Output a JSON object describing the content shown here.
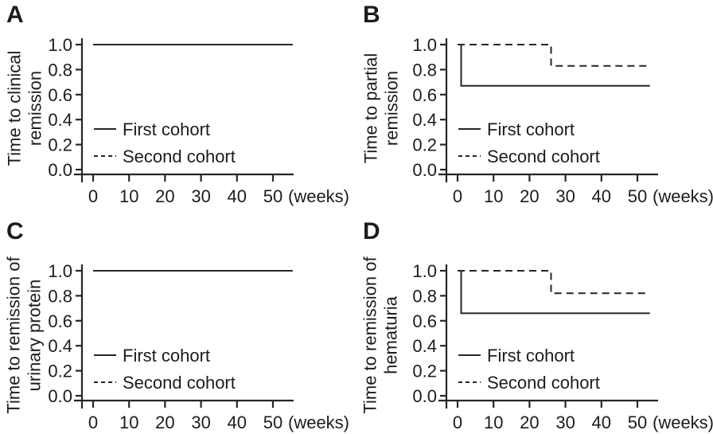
{
  "figure": {
    "background": "#ffffff",
    "line_color": "#262626",
    "text_color": "#1c1c1c"
  },
  "chart_data": [
    {
      "panel": "A",
      "type": "line",
      "step": true,
      "grid": false,
      "ylabel_lines": [
        "Time to clinical",
        "remission"
      ],
      "x_unit_label": "(weeks)",
      "x_ticks": [
        0,
        10,
        20,
        30,
        40,
        50
      ],
      "y_ticks": [
        "0.0",
        "0.2",
        "0.4",
        "0.6",
        "0.8",
        "1.0"
      ],
      "xlim": [
        0,
        55.5
      ],
      "ylim": [
        0,
        1
      ],
      "legend_position": "inside-left-middle",
      "series": [
        {
          "name": "First cohort",
          "style": "solid",
          "points": [
            [
              0,
              1.0
            ],
            [
              55.5,
              1.0
            ]
          ]
        },
        {
          "name": "Second cohort",
          "style": "dashed",
          "points": [
            [
              0,
              1.0
            ],
            [
              55.5,
              1.0
            ]
          ]
        }
      ]
    },
    {
      "panel": "B",
      "type": "line",
      "step": true,
      "grid": false,
      "ylabel_lines": [
        "Time to partial",
        "remission"
      ],
      "x_unit_label": "(weeks)",
      "x_ticks": [
        0,
        10,
        20,
        30,
        40,
        50
      ],
      "y_ticks": [
        "0.0",
        "0.2",
        "0.4",
        "0.6",
        "0.8",
        "1.0"
      ],
      "xlim": [
        0,
        55.5
      ],
      "ylim": [
        0,
        1
      ],
      "legend_position": "inside-left-middle",
      "series": [
        {
          "name": "First cohort",
          "style": "solid",
          "points": [
            [
              0,
              1.0
            ],
            [
              1,
              1.0
            ],
            [
              1,
              0.67
            ],
            [
              53.5,
              0.67
            ]
          ]
        },
        {
          "name": "Second cohort",
          "style": "dashed",
          "points": [
            [
              0,
              1.0
            ],
            [
              26,
              1.0
            ],
            [
              26,
              0.83
            ],
            [
              53.5,
              0.83
            ]
          ]
        }
      ]
    },
    {
      "panel": "C",
      "type": "line",
      "step": true,
      "grid": false,
      "ylabel_lines": [
        "Time to remission of",
        "urinary protein"
      ],
      "x_unit_label": "(weeks)",
      "x_ticks": [
        0,
        10,
        20,
        30,
        40,
        50
      ],
      "y_ticks": [
        "0.0",
        "0.2",
        "0.4",
        "0.6",
        "0.8",
        "1.0"
      ],
      "xlim": [
        0,
        55.5
      ],
      "ylim": [
        0,
        1
      ],
      "legend_position": "inside-left-middle",
      "series": [
        {
          "name": "First cohort",
          "style": "solid",
          "points": [
            [
              0,
              1.0
            ],
            [
              55.5,
              1.0
            ]
          ]
        },
        {
          "name": "Second cohort",
          "style": "dashed",
          "points": [
            [
              0,
              1.0
            ],
            [
              55.5,
              1.0
            ]
          ]
        }
      ]
    },
    {
      "panel": "D",
      "type": "line",
      "step": true,
      "grid": false,
      "ylabel_lines": [
        "Time to remission of",
        "hematuria"
      ],
      "x_unit_label": "(weeks)",
      "x_ticks": [
        0,
        10,
        20,
        30,
        40,
        50
      ],
      "y_ticks": [
        "0.0",
        "0.2",
        "0.4",
        "0.6",
        "0.8",
        "1.0"
      ],
      "xlim": [
        0,
        55.5
      ],
      "ylim": [
        0,
        1
      ],
      "legend_position": "inside-left-middle",
      "series": [
        {
          "name": "First cohort",
          "style": "solid",
          "points": [
            [
              0,
              1.0
            ],
            [
              1,
              1.0
            ],
            [
              1,
              0.66
            ],
            [
              53.5,
              0.66
            ]
          ]
        },
        {
          "name": "Second cohort",
          "style": "dashed",
          "points": [
            [
              0,
              1.0
            ],
            [
              26,
              1.0
            ],
            [
              26,
              0.82
            ],
            [
              53.5,
              0.82
            ]
          ]
        }
      ]
    }
  ]
}
